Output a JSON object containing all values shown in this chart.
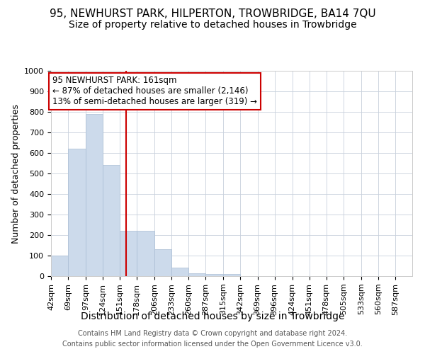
{
  "title": "95, NEWHURST PARK, HILPERTON, TROWBRIDGE, BA14 7QU",
  "subtitle": "Size of property relative to detached houses in Trowbridge",
  "xlabel": "Distribution of detached houses by size in Trowbridge",
  "ylabel": "Number of detached properties",
  "footer1": "Contains HM Land Registry data © Crown copyright and database right 2024.",
  "footer2": "Contains public sector information licensed under the Open Government Licence v3.0.",
  "annotation_line0": "95 NEWHURST PARK: 161sqm",
  "annotation_line1": "← 87% of detached houses are smaller (2,146)",
  "annotation_line2": "13% of semi-detached houses are larger (319) →",
  "property_size": 161,
  "bar_color": "#ccdaeb",
  "bar_edgecolor": "#aabdd4",
  "redline_color": "#cc0000",
  "categories": [
    "42sqm",
    "69sqm",
    "97sqm",
    "124sqm",
    "151sqm",
    "178sqm",
    "206sqm",
    "233sqm",
    "260sqm",
    "287sqm",
    "315sqm",
    "342sqm",
    "369sqm",
    "396sqm",
    "424sqm",
    "451sqm",
    "478sqm",
    "505sqm",
    "533sqm",
    "560sqm",
    "587sqm"
  ],
  "values": [
    100,
    620,
    790,
    540,
    220,
    220,
    130,
    43,
    15,
    10,
    10,
    0,
    0,
    0,
    0,
    0,
    0,
    0,
    0,
    0,
    0
  ],
  "bin_edges": [
    42,
    69,
    97,
    124,
    151,
    178,
    206,
    233,
    260,
    287,
    315,
    342,
    369,
    396,
    424,
    451,
    478,
    505,
    533,
    560,
    587,
    614
  ],
  "ylim": [
    0,
    1000
  ],
  "yticks": [
    0,
    100,
    200,
    300,
    400,
    500,
    600,
    700,
    800,
    900,
    1000
  ],
  "background_color": "#ffffff",
  "grid_color": "#c8d0dc",
  "title_fontsize": 11,
  "subtitle_fontsize": 10,
  "xlabel_fontsize": 10,
  "ylabel_fontsize": 9,
  "tick_fontsize": 8,
  "annotation_fontsize": 8.5,
  "footer_fontsize": 7
}
